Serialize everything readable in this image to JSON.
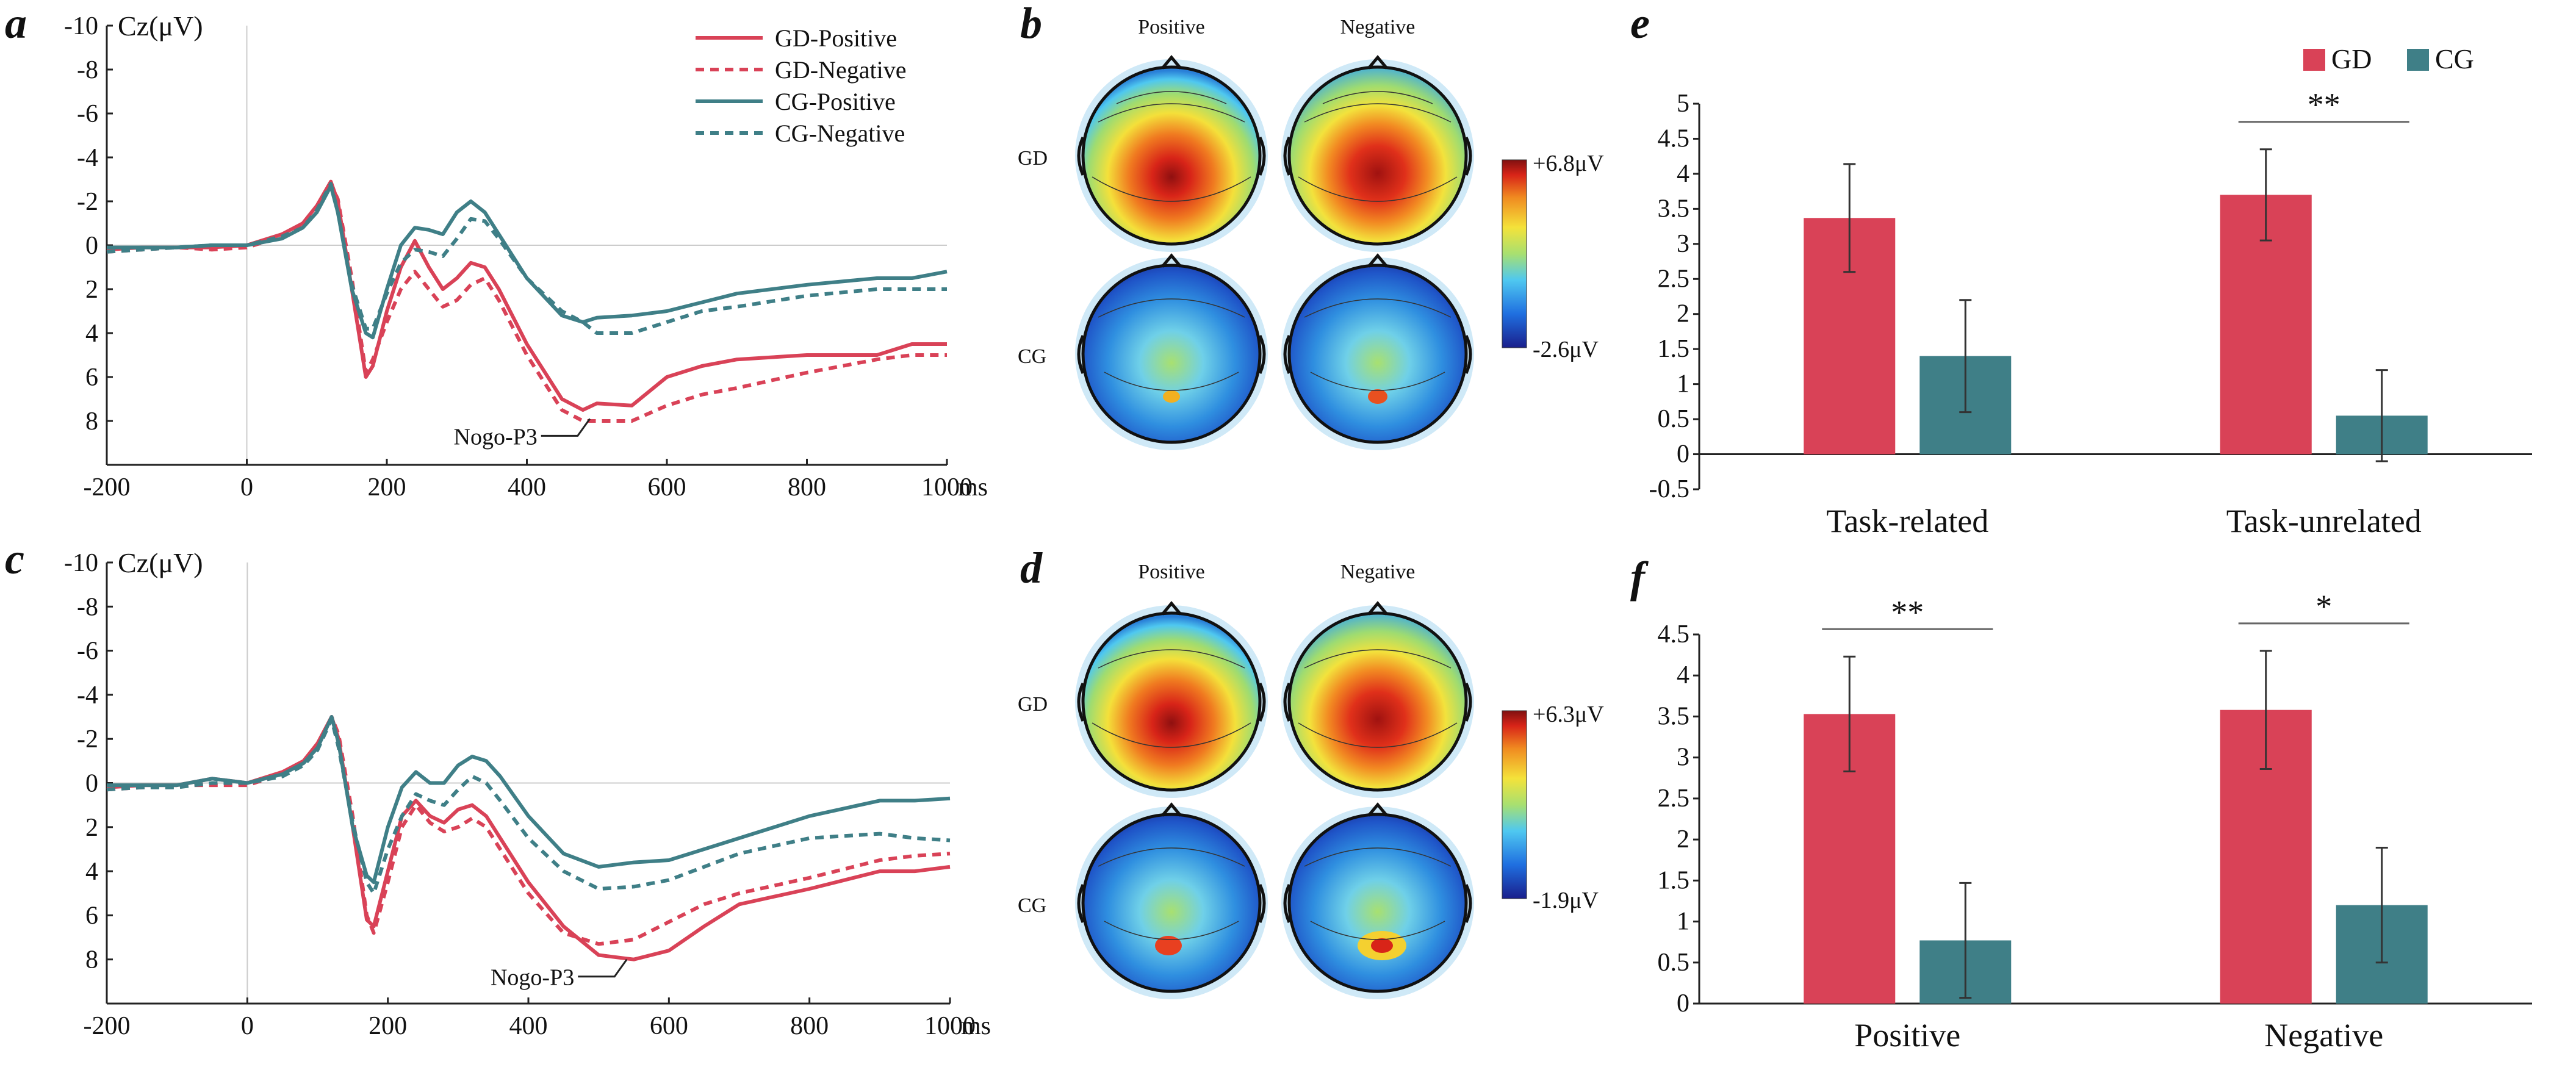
{
  "colors": {
    "gd": "#d94257",
    "cg": "#3f7f87",
    "axis": "#222222",
    "zero": "#cccccc"
  },
  "chart_data": [
    {
      "panel": "a",
      "type": "line",
      "ylabel": "Cz(μV)",
      "xunit": "ms",
      "xlim": [
        -200,
        1000
      ],
      "ylim": [
        -10,
        10
      ],
      "y_inverted": true,
      "xticks": [
        "-200",
        "0",
        "200",
        "400",
        "600",
        "800",
        "1000"
      ],
      "yticks": [
        "-10",
        "-8",
        "-6",
        "-4",
        "-2",
        "0",
        "2",
        "4",
        "6",
        "8"
      ],
      "annotation": "Nogo-P3",
      "x": [
        -200,
        -150,
        -100,
        -50,
        0,
        50,
        80,
        100,
        120,
        130,
        150,
        170,
        180,
        200,
        220,
        240,
        260,
        280,
        300,
        320,
        340,
        360,
        400,
        450,
        480,
        500,
        550,
        600,
        650,
        700,
        800,
        900,
        950,
        1000
      ],
      "series": [
        {
          "name": "GD-Positive",
          "values": [
            0.2,
            0.1,
            0.1,
            0.1,
            0,
            -0.5,
            -1,
            -1.8,
            -2.9,
            -2,
            2,
            6,
            5.5,
            3,
            1,
            -0.2,
            1,
            2,
            1.5,
            0.8,
            1,
            2,
            4.5,
            7,
            7.5,
            7.2,
            7.3,
            6,
            5.5,
            5.2,
            5,
            5,
            4.5,
            4.5
          ]
        },
        {
          "name": "GD-Negative",
          "values": [
            0.3,
            0.2,
            0.1,
            0.2,
            0.1,
            -0.4,
            -0.9,
            -1.6,
            -2.8,
            -2.1,
            1.5,
            5.8,
            5.2,
            3.5,
            2,
            1.2,
            2,
            2.8,
            2.5,
            1.8,
            1.5,
            2.5,
            5,
            7.5,
            8,
            8,
            8,
            7.3,
            6.8,
            6.5,
            5.8,
            5.2,
            5,
            5
          ]
        },
        {
          "name": "CG-Positive",
          "values": [
            0.1,
            0.1,
            0.1,
            0,
            0,
            -0.3,
            -0.8,
            -1.5,
            -2.7,
            -1.5,
            2,
            4,
            4.2,
            2,
            0,
            -0.8,
            -0.7,
            -0.5,
            -1.5,
            -2,
            -1.5,
            -0.5,
            1.5,
            3.2,
            3.5,
            3.3,
            3.2,
            3,
            2.6,
            2.2,
            1.8,
            1.5,
            1.5,
            1.2
          ]
        },
        {
          "name": "CG-Negative",
          "values": [
            0.3,
            0.2,
            0.1,
            0,
            0,
            -0.4,
            -0.8,
            -1.6,
            -2.8,
            -1.5,
            1.8,
            3.8,
            3.8,
            2.2,
            0.8,
            0.2,
            0.3,
            0.5,
            -0.3,
            -1.2,
            -1.1,
            -0.3,
            1.5,
            3,
            3.5,
            4,
            4,
            3.5,
            3,
            2.8,
            2.3,
            2,
            2,
            2
          ]
        }
      ]
    },
    {
      "panel": "c",
      "type": "line",
      "ylabel": "Cz(μV)",
      "xunit": "ms",
      "xlim": [
        -200,
        1000
      ],
      "ylim": [
        -10,
        10
      ],
      "y_inverted": true,
      "xticks": [
        "-200",
        "0",
        "200",
        "400",
        "600",
        "800",
        "1000"
      ],
      "yticks": [
        "-10",
        "-8",
        "-6",
        "-4",
        "-2",
        "0",
        "2",
        "4",
        "6",
        "8"
      ],
      "annotation": "Nogo-P3",
      "x": [
        -200,
        -150,
        -100,
        -50,
        0,
        50,
        80,
        100,
        120,
        130,
        150,
        170,
        180,
        200,
        220,
        240,
        260,
        280,
        300,
        320,
        340,
        360,
        400,
        450,
        500,
        550,
        600,
        650,
        700,
        800,
        900,
        950,
        1000
      ],
      "series": [
        {
          "name": "GD-Positive",
          "values": [
            0.2,
            0.1,
            0.1,
            -0.2,
            0,
            -0.5,
            -1,
            -1.8,
            -3,
            -2,
            2,
            6.2,
            6.5,
            4,
            1.5,
            0.8,
            1.5,
            1.8,
            1.2,
            1,
            1.5,
            2.5,
            4.5,
            6.5,
            7.8,
            8,
            7.6,
            6.5,
            5.5,
            4.8,
            4,
            4,
            3.8
          ]
        },
        {
          "name": "GD-Negative",
          "values": [
            0.3,
            0.2,
            0.1,
            0.1,
            0.1,
            -0.4,
            -1,
            -1.7,
            -3,
            -2.2,
            1.5,
            6,
            6.8,
            4.5,
            2,
            1,
            1.8,
            2.2,
            2,
            1.6,
            2,
            3,
            5,
            6.8,
            7.3,
            7.1,
            6.3,
            5.5,
            5,
            4.3,
            3.5,
            3.3,
            3.2
          ]
        },
        {
          "name": "CG-Positive",
          "values": [
            0.1,
            0.1,
            0.1,
            -0.2,
            0,
            -0.4,
            -0.9,
            -1.6,
            -3,
            -1.8,
            2,
            4.2,
            4.5,
            2,
            0.2,
            -0.5,
            0,
            0,
            -0.8,
            -1.2,
            -1,
            -0.3,
            1.5,
            3.2,
            3.8,
            3.6,
            3.5,
            3,
            2.5,
            1.5,
            0.8,
            0.8,
            0.7
          ]
        },
        {
          "name": "CG-Negative",
          "values": [
            0.3,
            0.2,
            0.2,
            0,
            0,
            -0.3,
            -0.8,
            -1.5,
            -2.9,
            -1.6,
            1.8,
            4.5,
            5,
            3,
            1.5,
            0.5,
            0.8,
            1,
            0.3,
            -0.3,
            0,
            0.8,
            2.5,
            4,
            4.8,
            4.7,
            4.4,
            3.8,
            3.2,
            2.5,
            2.3,
            2.5,
            2.6
          ]
        }
      ]
    },
    {
      "panel": "e",
      "type": "bar",
      "categories": [
        "Task-related",
        "Task-unrelated"
      ],
      "series": [
        {
          "name": "GD",
          "values": [
            3.37,
            3.7
          ],
          "errors": [
            0.77,
            0.65
          ]
        },
        {
          "name": "CG",
          "values": [
            1.4,
            0.55
          ],
          "errors": [
            0.8,
            0.65
          ]
        }
      ],
      "ylim": [
        -0.5,
        5
      ],
      "yticks": [
        "-0.5",
        "0",
        "0.5",
        "1",
        "1.5",
        "2",
        "2.5",
        "3",
        "3.5",
        "4",
        "4.5",
        "5"
      ],
      "significance": [
        "",
        "**"
      ]
    },
    {
      "panel": "f",
      "type": "bar",
      "categories": [
        "Positive",
        "Negative"
      ],
      "series": [
        {
          "name": "GD",
          "values": [
            3.53,
            3.58
          ],
          "errors": [
            0.7,
            0.72
          ]
        },
        {
          "name": "CG",
          "values": [
            0.77,
            1.2
          ],
          "errors": [
            0.7,
            0.7
          ]
        }
      ],
      "ylim": [
        0,
        4.5
      ],
      "yticks": [
        "0",
        "0.5",
        "1",
        "1.5",
        "2",
        "2.5",
        "3",
        "3.5",
        "4",
        "4.5"
      ],
      "significance": [
        "**",
        "*"
      ]
    }
  ],
  "panels": {
    "a": "a",
    "b": "b",
    "c": "c",
    "d": "d",
    "e": "e",
    "f": "f"
  },
  "topo_b": {
    "col_positive": "Positive",
    "col_negative": "Negative",
    "row_gd": "GD",
    "row_cg": "CG",
    "cb_max": "+6.8μV",
    "cb_min": "-2.6μV"
  },
  "topo_d": {
    "col_positive": "Positive",
    "col_negative": "Negative",
    "row_gd": "GD",
    "row_cg": "CG",
    "cb_max": "+6.3μV",
    "cb_min": "-1.9μV"
  }
}
